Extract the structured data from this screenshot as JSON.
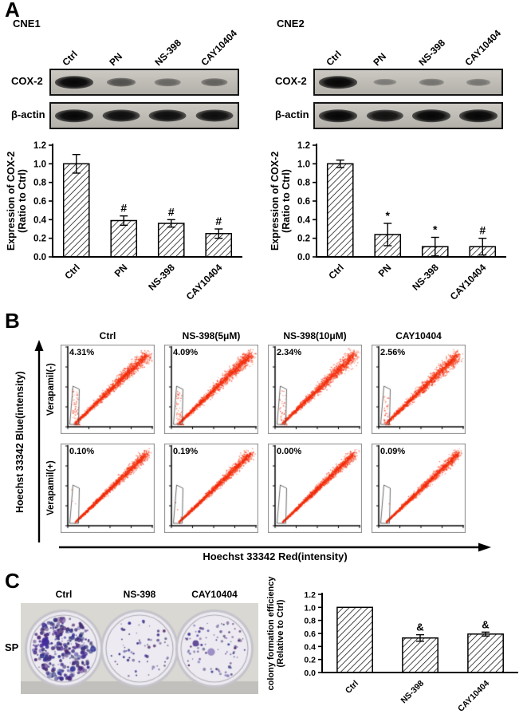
{
  "figure": {
    "panelA": {
      "label": "A",
      "blocks": [
        {
          "cell_line": "CNE1",
          "lanes": [
            "Ctrl",
            "PN",
            "NS-398",
            "CAY10404"
          ],
          "bands": [
            {
              "name": "COX-2",
              "intensities": [
                1.0,
                0.45,
                0.3,
                0.33
              ]
            },
            {
              "name": "β-actin",
              "intensities": [
                1.0,
                0.95,
                0.95,
                0.95
              ]
            }
          ]
        },
        {
          "cell_line": "CNE2",
          "lanes": [
            "Ctrl",
            "PN",
            "NS-398",
            "CAY10404"
          ],
          "bands": [
            {
              "name": "COX-2",
              "intensities": [
                1.0,
                0.15,
                0.2,
                0.18
              ]
            },
            {
              "name": "β-actin",
              "intensities": [
                1.0,
                0.92,
                1.0,
                1.0
              ]
            }
          ]
        }
      ]
    },
    "panelB": {
      "label": "B",
      "col_titles": [
        "Ctrl",
        "NS-398(5μM)",
        "NS-398(10μM)",
        "CAY10404"
      ],
      "rows": [
        {
          "side_label": "Verapamil(-)",
          "percentages": [
            "4.31%",
            "4.09%",
            "2.34%",
            "2.56%"
          ]
        },
        {
          "side_label": "Verapamil(+)",
          "percentages": [
            "0.10%",
            "0.19%",
            "0.00%",
            "0.09%"
          ]
        }
      ],
      "y_axis_label": "Hoechst 33342 Blue(intensity)",
      "x_axis_label": "Hoechst 33342 Red(intensity)"
    },
    "panelC": {
      "label": "C",
      "row_label": "SP",
      "dish_labels": [
        "Ctrl",
        "NS-398",
        "CAY10404"
      ]
    },
    "colors": {
      "scatter_dot": "#ff2a10",
      "colony_dot": "#3a2f6e",
      "bar_fill": "#ffffff",
      "bar_hatch": "#000000"
    }
  },
  "chart_data": [
    {
      "id": "cne1_cox2_expression",
      "type": "bar",
      "categories": [
        "Ctrl",
        "PN",
        "NS-398",
        "CAY10404"
      ],
      "values": [
        1.0,
        0.39,
        0.36,
        0.25
      ],
      "errors": [
        0.1,
        0.05,
        0.04,
        0.05
      ],
      "annotations": [
        "",
        "#",
        "#",
        "#"
      ],
      "ylabel_line1": "Expression of COX-2",
      "ylabel_line2": "(Ratio to Ctrl)",
      "ylim": [
        0,
        1.2
      ],
      "ytick_step": 0.2,
      "grid": false,
      "legend": "none"
    },
    {
      "id": "cne2_cox2_expression",
      "type": "bar",
      "categories": [
        "Ctrl",
        "PN",
        "NS-398",
        "CAY10404"
      ],
      "values": [
        1.0,
        0.24,
        0.11,
        0.11
      ],
      "errors": [
        0.04,
        0.12,
        0.1,
        0.09
      ],
      "annotations": [
        "",
        "*",
        "*",
        "#"
      ],
      "ylabel_line1": "Expression of COX-2",
      "ylabel_line2": "(Ratio to Ctrl)",
      "ylim": [
        0,
        1.2
      ],
      "ytick_step": 0.2,
      "grid": false,
      "legend": "none"
    },
    {
      "id": "sp_colony_formation_efficiency",
      "type": "bar",
      "categories": [
        "Ctrl",
        "NS-398",
        "CAY10404"
      ],
      "values": [
        1.0,
        0.53,
        0.59
      ],
      "errors": [
        0,
        0.05,
        0.03
      ],
      "annotations": [
        "",
        "&",
        "&"
      ],
      "ylabel_line1": "colony formation efficiency",
      "ylabel_line2": "(Relative to Ctrl)",
      "ylim": [
        0,
        1.2
      ],
      "ytick_step": 0.2,
      "grid": false,
      "legend": "none"
    }
  ]
}
